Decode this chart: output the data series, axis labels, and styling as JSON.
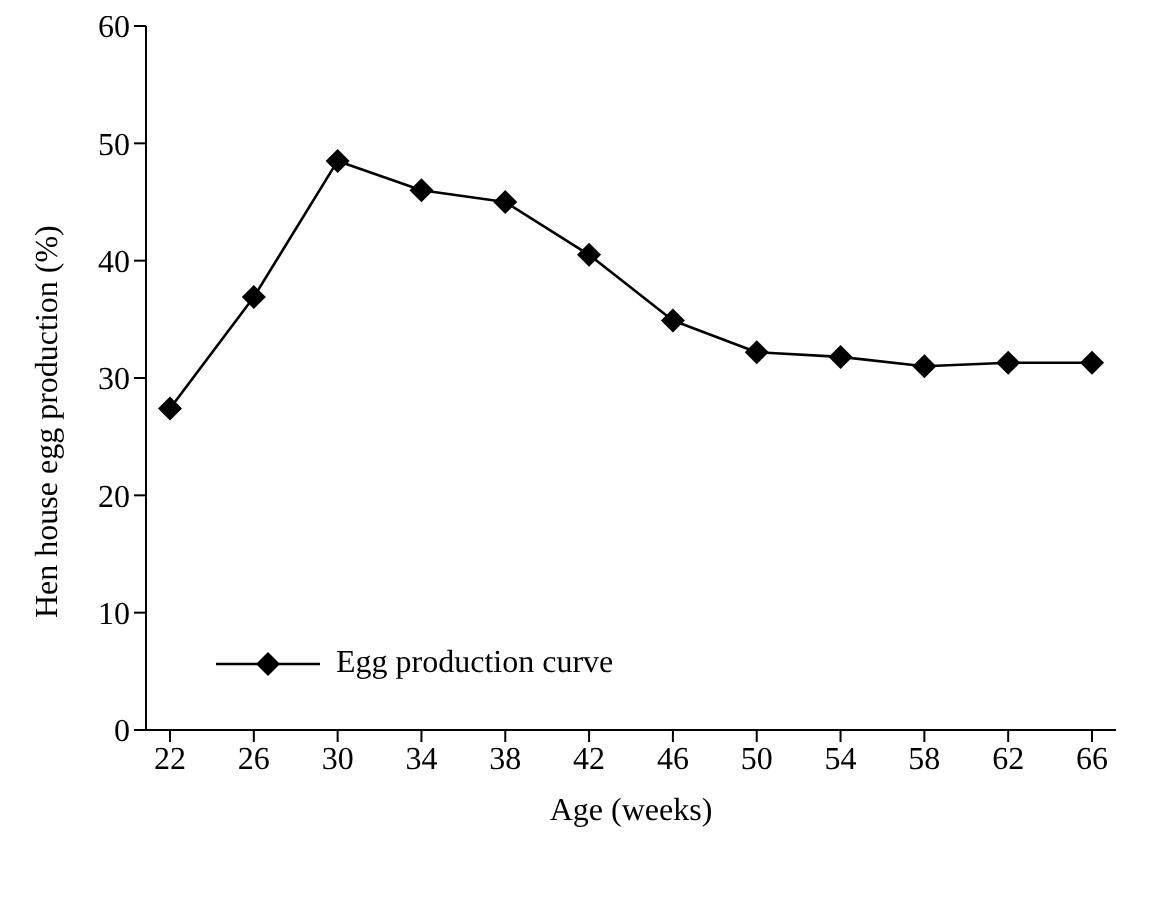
{
  "chart_data": {
    "type": "line",
    "xlabel": "Age (weeks)",
    "ylabel": "Hen house egg production (%)",
    "categories": [
      "22",
      "26",
      "30",
      "34",
      "38",
      "42",
      "46",
      "50",
      "54",
      "58",
      "62",
      "66"
    ],
    "series": [
      {
        "name": "Egg production curve",
        "color": "#000000",
        "values": [
          27.4,
          36.9,
          48.5,
          46.0,
          45.0,
          40.5,
          34.9,
          32.2,
          31.8,
          31.0,
          31.3,
          31.3
        ]
      }
    ],
    "ylim": [
      0,
      60
    ],
    "yticks": [
      0,
      10,
      20,
      30,
      40,
      50,
      60
    ],
    "grid": false,
    "legend": "bottom left",
    "marker": "diamond",
    "line_style": "solid"
  }
}
